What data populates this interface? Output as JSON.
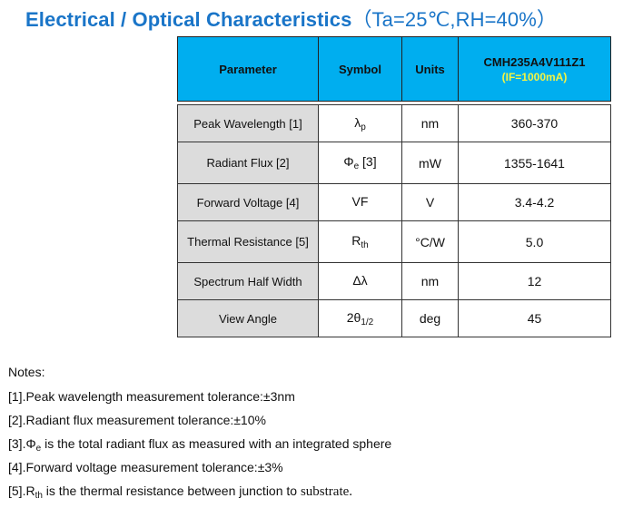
{
  "title": {
    "main": "Electrical / Optical Characteristics",
    "cond": "（Ta=25℃,RH=40%）"
  },
  "table": {
    "headers": {
      "parameter": "Parameter",
      "symbol": "Symbol",
      "units": "Units",
      "model": "CMH235A4V111Z1",
      "model_cond": "(IF=1000mA)"
    },
    "rows": [
      {
        "parameter": "Peak Wavelength [1]",
        "symbol_base": "λ",
        "symbol_sub": "p",
        "symbol_suffix": "",
        "units": "nm",
        "value": "360-370"
      },
      {
        "parameter": "Radiant Flux [2]",
        "symbol_base": "Φ",
        "symbol_sub": "e",
        "symbol_suffix": " [3]",
        "units": "mW",
        "value": "1355-1641"
      },
      {
        "parameter": "Forward Voltage [4]",
        "symbol_base": "VF",
        "symbol_sub": "",
        "symbol_suffix": "",
        "units": "V",
        "value": "3.4-4.2"
      },
      {
        "parameter": "Thermal Resistance [5]",
        "symbol_base": "R",
        "symbol_sub": "th",
        "symbol_suffix": "",
        "units": "°C/W",
        "value": "5.0"
      },
      {
        "parameter": "Spectrum Half Width",
        "symbol_base": "Δλ",
        "symbol_sub": "",
        "symbol_suffix": "",
        "units": "nm",
        "value": "12"
      },
      {
        "parameter": "View Angle",
        "symbol_base": "2θ",
        "symbol_sub": "1/2",
        "symbol_suffix": "",
        "units": "deg",
        "value": "45"
      }
    ]
  },
  "notes": {
    "heading": "Notes:",
    "n1": "[1].Peak wavelength measurement tolerance:±3nm",
    "n2": "[2].Radiant flux measurement tolerance:±10%",
    "n3_pre": "[3].Φ",
    "n3_sub": "e",
    "n3_post": " is the total radiant flux as measured with an integrated sphere",
    "n4": "[4].Forward voltage measurement tolerance:±3%",
    "n5_pre": "[5].R",
    "n5_sub": "th",
    "n5_post": " is the thermal resistance between junction to ",
    "n5_end": "substrate."
  }
}
